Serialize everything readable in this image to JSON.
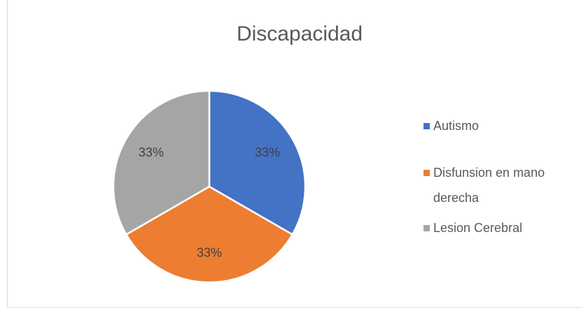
{
  "chart_data": {
    "type": "pie",
    "title": "Discapacidad",
    "categories": [
      "Autismo",
      "Disfunsion en mano derecha",
      "Lesion Cerebral"
    ],
    "values": [
      33,
      33,
      33
    ],
    "value_labels": [
      "33%",
      "33%",
      "33%"
    ],
    "colors": [
      "#4472c4",
      "#ed7d31",
      "#a5a5a5"
    ],
    "legend": "right"
  }
}
